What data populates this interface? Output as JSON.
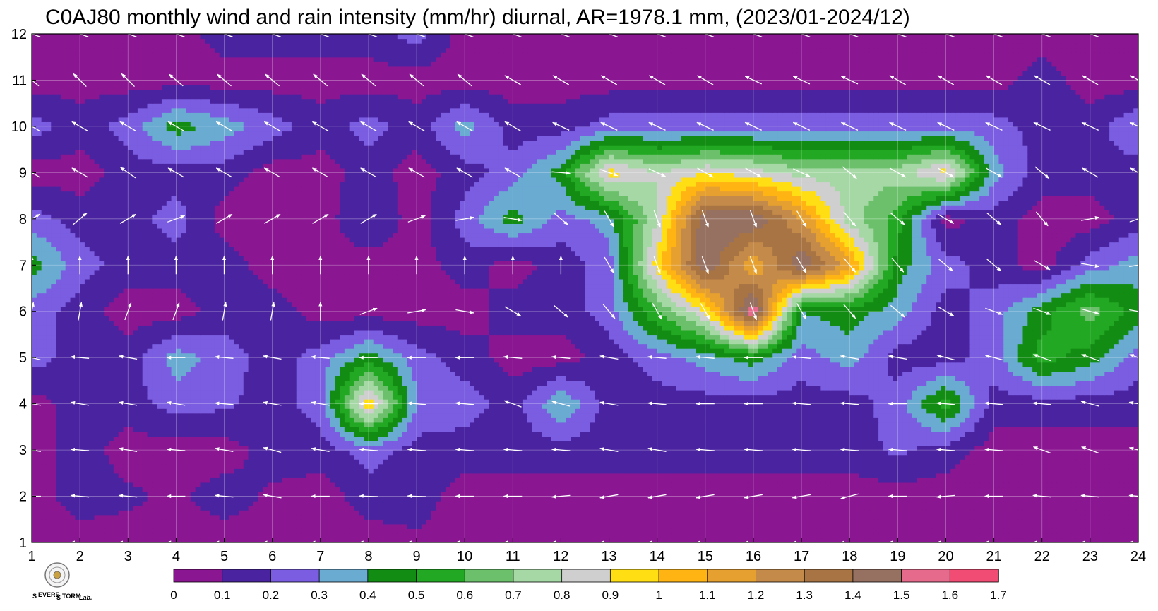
{
  "chart_data": {
    "type": "heatmap",
    "title": "C0AJ80 monthly wind and rain intensity (mm/hr) diurnal, AR=1978.1 mm, (2023/01-2024/12)",
    "xlabel": "",
    "ylabel": "",
    "x_ticks": [
      1,
      2,
      3,
      4,
      5,
      6,
      7,
      8,
      9,
      10,
      11,
      12,
      13,
      14,
      15,
      16,
      17,
      18,
      19,
      20,
      21,
      22,
      23,
      24
    ],
    "y_ticks": [
      1,
      2,
      3,
      4,
      5,
      6,
      7,
      8,
      9,
      10,
      11,
      12
    ],
    "xlim": [
      1,
      24
    ],
    "ylim": [
      1,
      12
    ],
    "grid": true,
    "colorbar": {
      "placement": "bottom",
      "levels": [
        "0",
        "0.1",
        "0.2",
        "0.3",
        "0.4",
        "0.5",
        "0.6",
        "0.7",
        "0.8",
        "0.9",
        "1",
        "1.1",
        "1.2",
        "1.3",
        "1.4",
        "1.5",
        "1.6",
        "1.7"
      ],
      "colors": [
        "#8a1691",
        "#4a24a0",
        "#7a5de0",
        "#6aabd2",
        "#128c12",
        "#22a822",
        "#6cc06c",
        "#a6d8a6",
        "#cfcfcf",
        "#ffde14",
        "#ffb414",
        "#e6a030",
        "#c48a4a",
        "#a87444",
        "#967060",
        "#e66a8c",
        "#f04c74",
        "#d62c46"
      ]
    },
    "rain_rate_grid_note_rows_are_months_1_to_12_cols_are_hours_1_to_24": [
      [
        0.05,
        0.05,
        0.05,
        0.05,
        0.05,
        0.05,
        0.05,
        0.05,
        0.08,
        0.05,
        0.05,
        0.05,
        0.05,
        0.05,
        0.05,
        0.05,
        0.05,
        0.05,
        0.05,
        0.05,
        0.05,
        0.05,
        0.05,
        0.05
      ],
      [
        0.05,
        0.15,
        0.12,
        0.08,
        0.15,
        0.08,
        0.05,
        0.15,
        0.15,
        0.05,
        0.05,
        0.05,
        0.05,
        0.05,
        0.05,
        0.05,
        0.05,
        0.05,
        0.05,
        0.05,
        0.05,
        0.05,
        0.05,
        0.05
      ],
      [
        0.05,
        0.15,
        0.05,
        0.05,
        0.05,
        0.15,
        0.15,
        0.25,
        0.15,
        0.15,
        0.15,
        0.15,
        0.15,
        0.15,
        0.15,
        0.15,
        0.15,
        0.15,
        0.22,
        0.15,
        0.05,
        0.05,
        0.05,
        0.05
      ],
      [
        0.05,
        0.15,
        0.15,
        0.25,
        0.22,
        0.15,
        0.25,
        1.0,
        0.3,
        0.25,
        0.15,
        0.4,
        0.15,
        0.15,
        0.15,
        0.15,
        0.15,
        0.15,
        0.25,
        0.55,
        0.15,
        0.15,
        0.15,
        0.15
      ],
      [
        0.25,
        0.15,
        0.15,
        0.35,
        0.25,
        0.15,
        0.25,
        0.45,
        0.25,
        0.15,
        0.05,
        0.05,
        0.15,
        0.25,
        0.35,
        0.45,
        0.25,
        0.35,
        0.15,
        0.15,
        0.25,
        0.55,
        0.45,
        0.25
      ],
      [
        0.25,
        0.15,
        0.05,
        0.05,
        0.15,
        0.15,
        0.05,
        0.05,
        0.05,
        0.05,
        0.15,
        0.15,
        0.25,
        0.6,
        0.9,
        1.6,
        0.4,
        0.45,
        0.35,
        0.15,
        0.25,
        0.45,
        0.65,
        0.45
      ],
      [
        0.45,
        0.25,
        0.15,
        0.15,
        0.15,
        0.05,
        0.05,
        0.05,
        0.05,
        0.15,
        0.05,
        0.15,
        0.25,
        0.95,
        1.5,
        1.1,
        1.5,
        1.15,
        0.45,
        0.25,
        0.15,
        0.05,
        0.25,
        0.35
      ],
      [
        0.25,
        0.15,
        0.15,
        0.25,
        0.05,
        0.05,
        0.05,
        0.2,
        0.05,
        0.25,
        0.45,
        0.25,
        0.35,
        0.8,
        1.5,
        1.5,
        1.2,
        0.75,
        0.55,
        0.05,
        0.15,
        0.05,
        0.05,
        0.15
      ],
      [
        0.05,
        0.05,
        0.15,
        0.15,
        0.15,
        0.05,
        0.05,
        0.15,
        0.05,
        0.15,
        0.25,
        0.45,
        0.95,
        0.8,
        0.9,
        0.85,
        0.75,
        0.75,
        0.75,
        0.95,
        0.35,
        0.15,
        0.15,
        0.15
      ],
      [
        0.25,
        0.15,
        0.25,
        0.45,
        0.35,
        0.25,
        0.15,
        0.25,
        0.15,
        0.35,
        0.15,
        0.15,
        0.25,
        0.25,
        0.25,
        0.25,
        0.25,
        0.25,
        0.25,
        0.25,
        0.25,
        0.15,
        0.15,
        0.3
      ],
      [
        0.05,
        0.05,
        0.05,
        0.05,
        0.05,
        0.05,
        0.05,
        0.05,
        0.05,
        0.05,
        0.05,
        0.05,
        0.05,
        0.05,
        0.05,
        0.05,
        0.05,
        0.05,
        0.05,
        0.05,
        0.05,
        0.15,
        0.05,
        0.05
      ],
      [
        0.05,
        0.05,
        0.05,
        0.05,
        0.15,
        0.15,
        0.15,
        0.15,
        0.25,
        0.05,
        0.05,
        0.05,
        0.05,
        0.05,
        0.05,
        0.05,
        0.05,
        0.05,
        0.05,
        0.05,
        0.05,
        0.05,
        0.05,
        0.05
      ]
    ],
    "wind_direction_deg_note_rows_are_months_1_to_12_math_angle": [
      [
        180,
        180,
        180,
        180,
        180,
        180,
        180,
        180,
        180,
        180,
        180,
        180,
        180,
        180,
        180,
        180,
        180,
        180,
        180,
        180,
        180,
        180,
        180,
        180
      ],
      [
        180,
        175,
        175,
        180,
        175,
        170,
        180,
        178,
        178,
        180,
        180,
        185,
        190,
        190,
        190,
        190,
        190,
        195,
        180,
        185,
        180,
        175,
        175,
        175
      ],
      [
        170,
        175,
        170,
        175,
        170,
        165,
        170,
        175,
        175,
        175,
        175,
        175,
        170,
        170,
        175,
        175,
        175,
        175,
        175,
        175,
        175,
        160,
        160,
        165
      ],
      [
        170,
        170,
        170,
        170,
        175,
        170,
        170,
        180,
        175,
        175,
        160,
        165,
        170,
        175,
        180,
        180,
        175,
        175,
        180,
        175,
        175,
        175,
        165,
        170
      ],
      [
        165,
        175,
        170,
        180,
        175,
        170,
        175,
        180,
        180,
        180,
        175,
        175,
        170,
        175,
        175,
        180,
        175,
        170,
        170,
        165,
        165,
        160,
        160,
        160
      ],
      [
        80,
        80,
        70,
        70,
        80,
        80,
        90,
        20,
        10,
        350,
        330,
        320,
        310,
        300,
        300,
        290,
        300,
        310,
        320,
        330,
        340,
        340,
        345,
        350
      ],
      [
        90,
        90,
        90,
        90,
        90,
        90,
        90,
        90,
        90,
        90,
        90,
        90,
        300,
        290,
        290,
        290,
        300,
        310,
        310,
        320,
        320,
        330,
        350,
        10
      ],
      [
        30,
        40,
        30,
        20,
        30,
        30,
        30,
        30,
        20,
        10,
        350,
        320,
        300,
        290,
        290,
        290,
        300,
        310,
        320,
        330,
        320,
        310,
        10,
        20
      ],
      [
        150,
        150,
        145,
        150,
        150,
        150,
        150,
        150,
        150,
        150,
        150,
        355,
        340,
        335,
        330,
        330,
        335,
        320,
        330,
        330,
        330,
        320,
        150,
        150
      ],
      [
        150,
        150,
        150,
        150,
        150,
        150,
        150,
        150,
        150,
        150,
        150,
        155,
        155,
        155,
        155,
        155,
        155,
        155,
        155,
        155,
        155,
        155,
        155,
        155
      ],
      [
        140,
        135,
        135,
        140,
        140,
        140,
        140,
        140,
        140,
        140,
        150,
        150,
        150,
        150,
        150,
        155,
        155,
        155,
        150,
        150,
        150,
        150,
        150,
        150
      ],
      [
        160,
        160,
        160,
        160,
        160,
        160,
        160,
        160,
        160,
        160,
        160,
        160,
        160,
        160,
        160,
        160,
        160,
        160,
        160,
        160,
        160,
        160,
        160,
        160
      ]
    ]
  },
  "branding": {
    "seal_icon": "round-seal-icon",
    "lab_logo": "severe-storm-lab-logo",
    "lab_logo_text": "Severe Storm Lab."
  }
}
